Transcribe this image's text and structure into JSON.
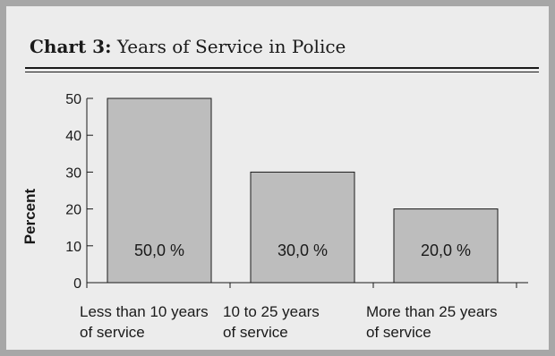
{
  "chart_data": {
    "type": "bar",
    "title_prefix": "Chart 3:",
    "title": "Years of Service in Police",
    "ylabel": "Percent",
    "xlabel": "",
    "ylim": [
      0,
      50
    ],
    "yticks": [
      0,
      10,
      20,
      30,
      40,
      50
    ],
    "grid": false,
    "categories": [
      [
        "Less than 10 years",
        "of service"
      ],
      [
        "10 to 25 years",
        "of service"
      ],
      [
        "More than 25 years",
        "of service"
      ]
    ],
    "values": [
      50,
      30,
      20
    ],
    "data_labels": [
      "50,0 %",
      "30,0 %",
      "20,0 %"
    ],
    "bar_color": "#bdbdbd",
    "background_color": "#ececec",
    "frame_color": "#a7a7a7"
  }
}
